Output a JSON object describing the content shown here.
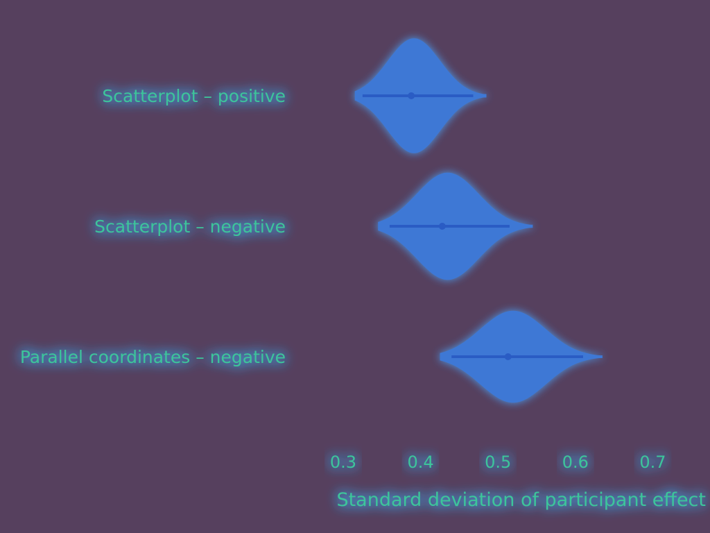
{
  "chart_data": {
    "type": "violin",
    "xlabel": "Standard deviation of participant effect",
    "xticks": [
      0.3,
      0.4,
      0.5,
      0.6,
      0.7
    ],
    "xlim": [
      0.245,
      0.74
    ],
    "grid": false,
    "categories": [
      "Scatterplot – positive",
      "Scatterplot – negative",
      "Parallel coordinates – negative"
    ],
    "distributions": [
      {
        "label": "Scatterplot – positive",
        "median": 0.388,
        "ci": [
          0.325,
          0.468
        ],
        "dist_range": [
          0.315,
          0.485
        ],
        "width": 0.75
      },
      {
        "label": "Scatterplot – negative",
        "median": 0.428,
        "ci": [
          0.36,
          0.515
        ],
        "dist_range": [
          0.345,
          0.545
        ],
        "width": 0.7
      },
      {
        "label": "Parallel coordinates – negative",
        "median": 0.513,
        "ci": [
          0.44,
          0.61
        ],
        "dist_range": [
          0.425,
          0.635
        ],
        "width": 0.6
      }
    ],
    "colors": {
      "background": "#56405e",
      "axis": "#3a4aa8",
      "violin": "#3c7de0",
      "halo": "#4aa8ff",
      "text": "#3ec59a"
    }
  }
}
